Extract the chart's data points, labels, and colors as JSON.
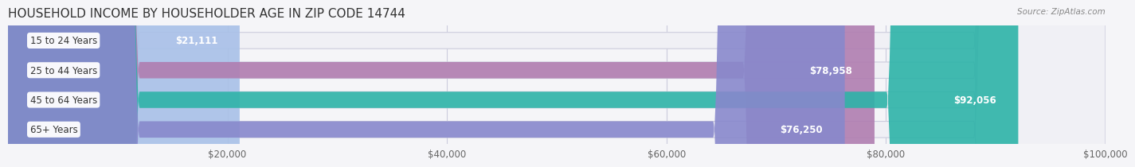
{
  "title": "HOUSEHOLD INCOME BY HOUSEHOLDER AGE IN ZIP CODE 14744",
  "source": "Source: ZipAtlas.com",
  "categories": [
    "15 to 24 Years",
    "25 to 44 Years",
    "45 to 64 Years",
    "65+ Years"
  ],
  "values": [
    21111,
    78958,
    92056,
    76250
  ],
  "labels": [
    "$21,111",
    "$78,958",
    "$92,056",
    "$76,250"
  ],
  "bar_colors": [
    "#a8c0e8",
    "#b07db0",
    "#2db3a8",
    "#8888cc"
  ],
  "bar_bg_color": "#f0f0f5",
  "xmax": 100000,
  "xticks": [
    0,
    20000,
    40000,
    60000,
    80000,
    100000
  ],
  "xticklabels": [
    "",
    "$20,000",
    "$40,000",
    "$60,000",
    "$80,000",
    "$100,000"
  ],
  "background_color": "#f5f5f8",
  "title_fontsize": 11,
  "label_fontsize": 8.5,
  "bar_height": 0.55,
  "figsize": [
    14.06,
    2.33
  ]
}
